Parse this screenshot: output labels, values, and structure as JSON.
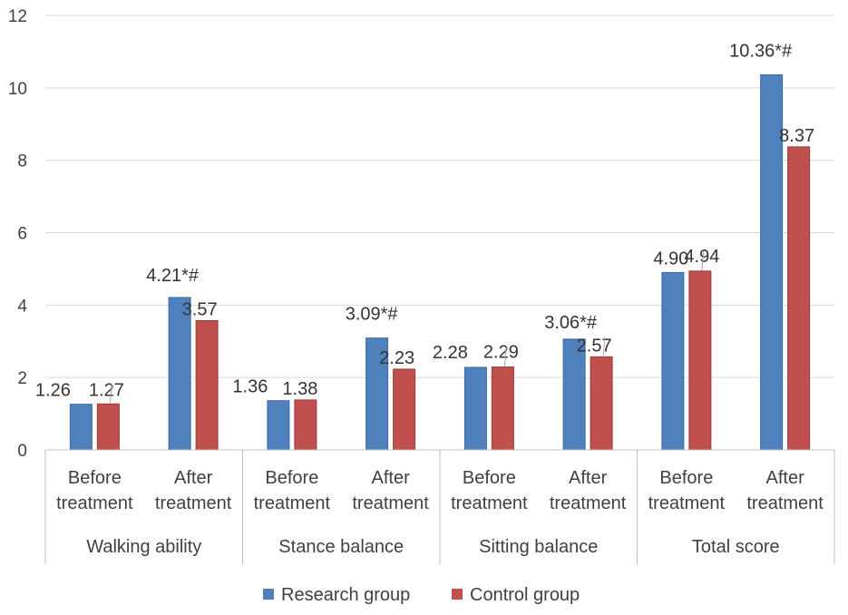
{
  "chart_data": {
    "type": "bar",
    "y_ticks": [
      "0",
      "2",
      "4",
      "6",
      "8",
      "10",
      "12"
    ],
    "ylim": [
      0,
      12
    ],
    "grid": true,
    "groups": [
      {
        "label": "Walking ability",
        "categories": [
          {
            "line1": "Before",
            "line2": "treatment",
            "labels": [
              "1.26",
              "1.27"
            ]
          },
          {
            "line1": "After",
            "line2": "treatment",
            "labels": [
              "4.21*#",
              "3.57"
            ]
          }
        ]
      },
      {
        "label": "Stance balance",
        "categories": [
          {
            "line1": "Before",
            "line2": "treatment",
            "labels": [
              "1.36",
              "1.38"
            ]
          },
          {
            "line1": "After",
            "line2": "treatment",
            "labels": [
              "3.09*#",
              "2.23"
            ]
          }
        ]
      },
      {
        "label": "Sitting balance",
        "categories": [
          {
            "line1": "Before",
            "line2": "treatment",
            "labels": [
              "2.28",
              "2.29"
            ]
          },
          {
            "line1": "After",
            "line2": "treatment",
            "labels": [
              "3.06*#",
              "2.57"
            ]
          }
        ]
      },
      {
        "label": "Total score",
        "categories": [
          {
            "line1": "Before",
            "line2": "treatment",
            "labels": [
              "4.90",
              "4.94"
            ]
          },
          {
            "line1": "After",
            "line2": "treatment",
            "labels": [
              "10.36*#",
              "8.37"
            ]
          }
        ]
      }
    ],
    "series": [
      {
        "name": "Research group",
        "color": "#4f81bd",
        "values": [
          1.26,
          4.21,
          1.36,
          3.09,
          2.28,
          3.06,
          4.9,
          10.36
        ]
      },
      {
        "name": "Control group",
        "color": "#c0504d",
        "values": [
          1.27,
          3.57,
          1.38,
          2.23,
          2.29,
          2.57,
          4.94,
          8.37
        ]
      }
    ],
    "legend_position": "bottom"
  }
}
